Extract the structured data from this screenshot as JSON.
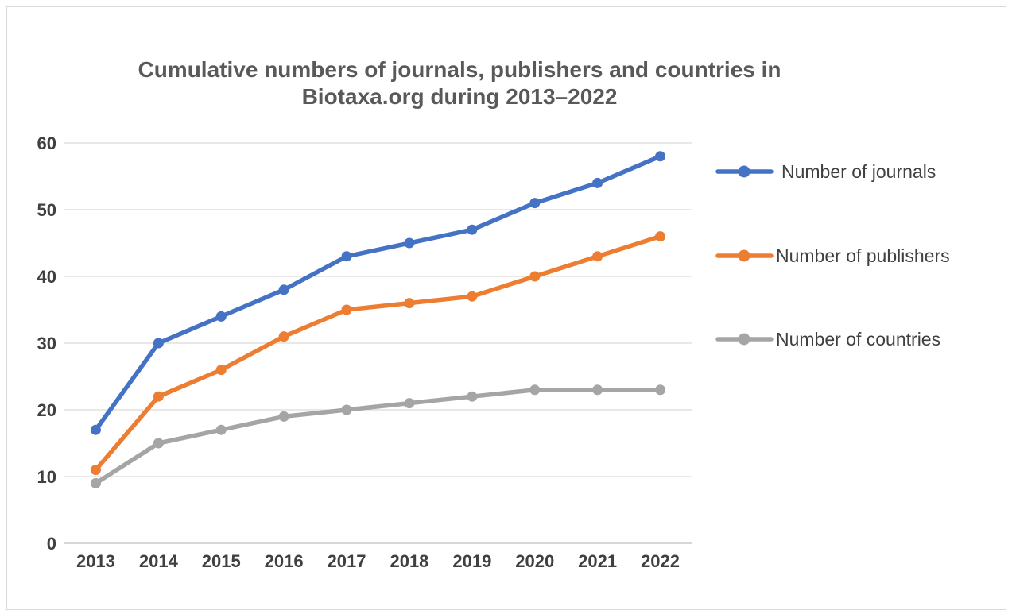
{
  "chart_data": {
    "type": "line",
    "title": "Cumulative numbers of journals, publishers and countries in Biotaxa.org during 2013–2022",
    "title_lines": [
      "Cumulative numbers of journals, publishers and countries in",
      "Biotaxa.org during 2013–2022"
    ],
    "categories": [
      "2013",
      "2014",
      "2015",
      "2016",
      "2017",
      "2018",
      "2019",
      "2020",
      "2021",
      "2022"
    ],
    "series": [
      {
        "name": "Number of journals",
        "color": "#4472c4",
        "values": [
          17,
          30,
          34,
          38,
          43,
          45,
          47,
          51,
          54,
          58
        ]
      },
      {
        "name": "Number of publishers",
        "color": "#ed7d31",
        "values": [
          11,
          22,
          26,
          31,
          35,
          36,
          37,
          40,
          43,
          46
        ]
      },
      {
        "name": "Number of countries",
        "color": "#a5a5a5",
        "values": [
          9,
          15,
          17,
          19,
          20,
          21,
          22,
          23,
          23,
          23
        ]
      }
    ],
    "ylim": [
      0,
      60
    ],
    "yticks": [
      0,
      10,
      20,
      30,
      40,
      50,
      60
    ],
    "xlabel": "",
    "ylabel": "",
    "grid": true,
    "legend_position": "right"
  }
}
